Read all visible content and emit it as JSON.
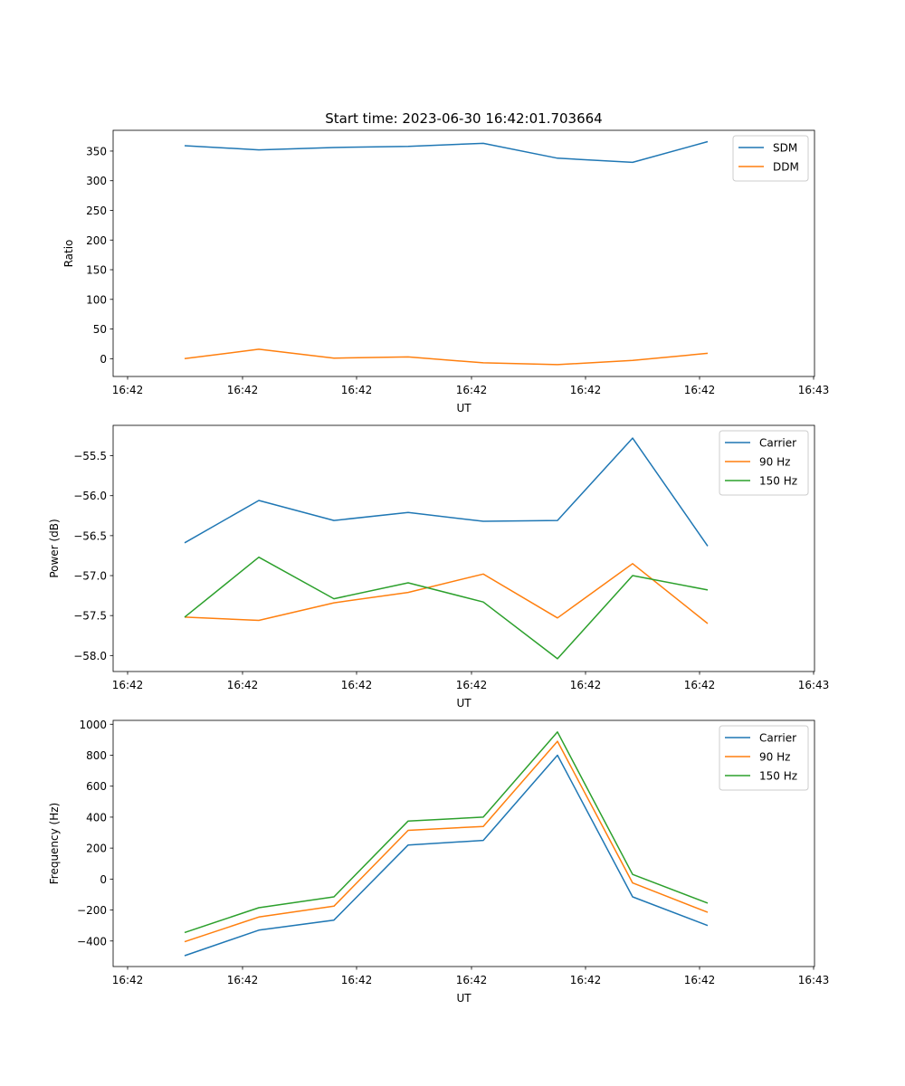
{
  "figure_title": "Start time: 2023-06-30 16:42:01.703664",
  "colors": {
    "blue": "#1f77b4",
    "orange": "#ff7f0e",
    "green": "#2ca02c"
  },
  "chart_data": [
    {
      "type": "line",
      "xlabel": "UT",
      "ylabel": "Ratio",
      "x_tick_labels": [
        "16:42",
        "16:42",
        "16:42",
        "16:42",
        "16:42",
        "16:42",
        "16:43"
      ],
      "y_ticks": [
        0,
        50,
        100,
        150,
        200,
        250,
        300,
        350
      ],
      "y_tick_labels": [
        "0",
        "50",
        "100",
        "150",
        "200",
        "250",
        "300",
        "350"
      ],
      "ylim": [
        -30,
        385
      ],
      "legend_position": "top-right",
      "series": [
        {
          "name": "SDM",
          "color": "#1f77b4",
          "values": [
            359,
            352,
            356,
            358,
            363,
            338,
            331,
            366
          ]
        },
        {
          "name": "DDM",
          "color": "#ff7f0e",
          "values": [
            0,
            16,
            1,
            3,
            -7,
            -10,
            -3,
            9
          ]
        }
      ]
    },
    {
      "type": "line",
      "xlabel": "UT",
      "ylabel": "Power (dB)",
      "x_tick_labels": [
        "16:42",
        "16:42",
        "16:42",
        "16:42",
        "16:42",
        "16:42",
        "16:43"
      ],
      "y_ticks": [
        -58.0,
        -57.5,
        -57.0,
        -56.5,
        -56.0,
        -55.5
      ],
      "y_tick_labels": [
        "−58.0",
        "−57.5",
        "−57.0",
        "−56.5",
        "−56.0",
        "−55.5"
      ],
      "ylim": [
        -58.2,
        -55.12
      ],
      "legend_position": "top-right",
      "series": [
        {
          "name": "Carrier",
          "color": "#1f77b4",
          "values": [
            -56.59,
            -56.06,
            -56.31,
            -56.21,
            -56.32,
            -56.31,
            -55.28,
            -56.63
          ]
        },
        {
          "name": "90 Hz",
          "color": "#ff7f0e",
          "values": [
            -57.52,
            -57.56,
            -57.34,
            -57.21,
            -56.98,
            -57.53,
            -56.85,
            -57.6
          ]
        },
        {
          "name": "150 Hz",
          "color": "#2ca02c",
          "values": [
            -57.52,
            -56.77,
            -57.29,
            -57.09,
            -57.33,
            -58.04,
            -57.0,
            -57.18
          ]
        }
      ]
    },
    {
      "type": "line",
      "xlabel": "UT",
      "ylabel": "Frequency (Hz)",
      "x_tick_labels": [
        "16:42",
        "16:42",
        "16:42",
        "16:42",
        "16:42",
        "16:42",
        "16:43"
      ],
      "y_ticks": [
        -400,
        -200,
        0,
        200,
        400,
        600,
        800,
        1000
      ],
      "y_tick_labels": [
        "−400",
        "−200",
        "0",
        "200",
        "400",
        "600",
        "800",
        "1000"
      ],
      "ylim": [
        -565,
        1025
      ],
      "legend_position": "top-right",
      "series": [
        {
          "name": "Carrier",
          "color": "#1f77b4",
          "values": [
            -495,
            -330,
            -265,
            220,
            250,
            800,
            -115,
            -300
          ]
        },
        {
          "name": "90 Hz",
          "color": "#ff7f0e",
          "values": [
            -405,
            -245,
            -175,
            315,
            340,
            890,
            -25,
            -215
          ]
        },
        {
          "name": "150 Hz",
          "color": "#2ca02c",
          "values": [
            -345,
            -185,
            -115,
            375,
            400,
            950,
            30,
            -155
          ]
        }
      ]
    }
  ]
}
